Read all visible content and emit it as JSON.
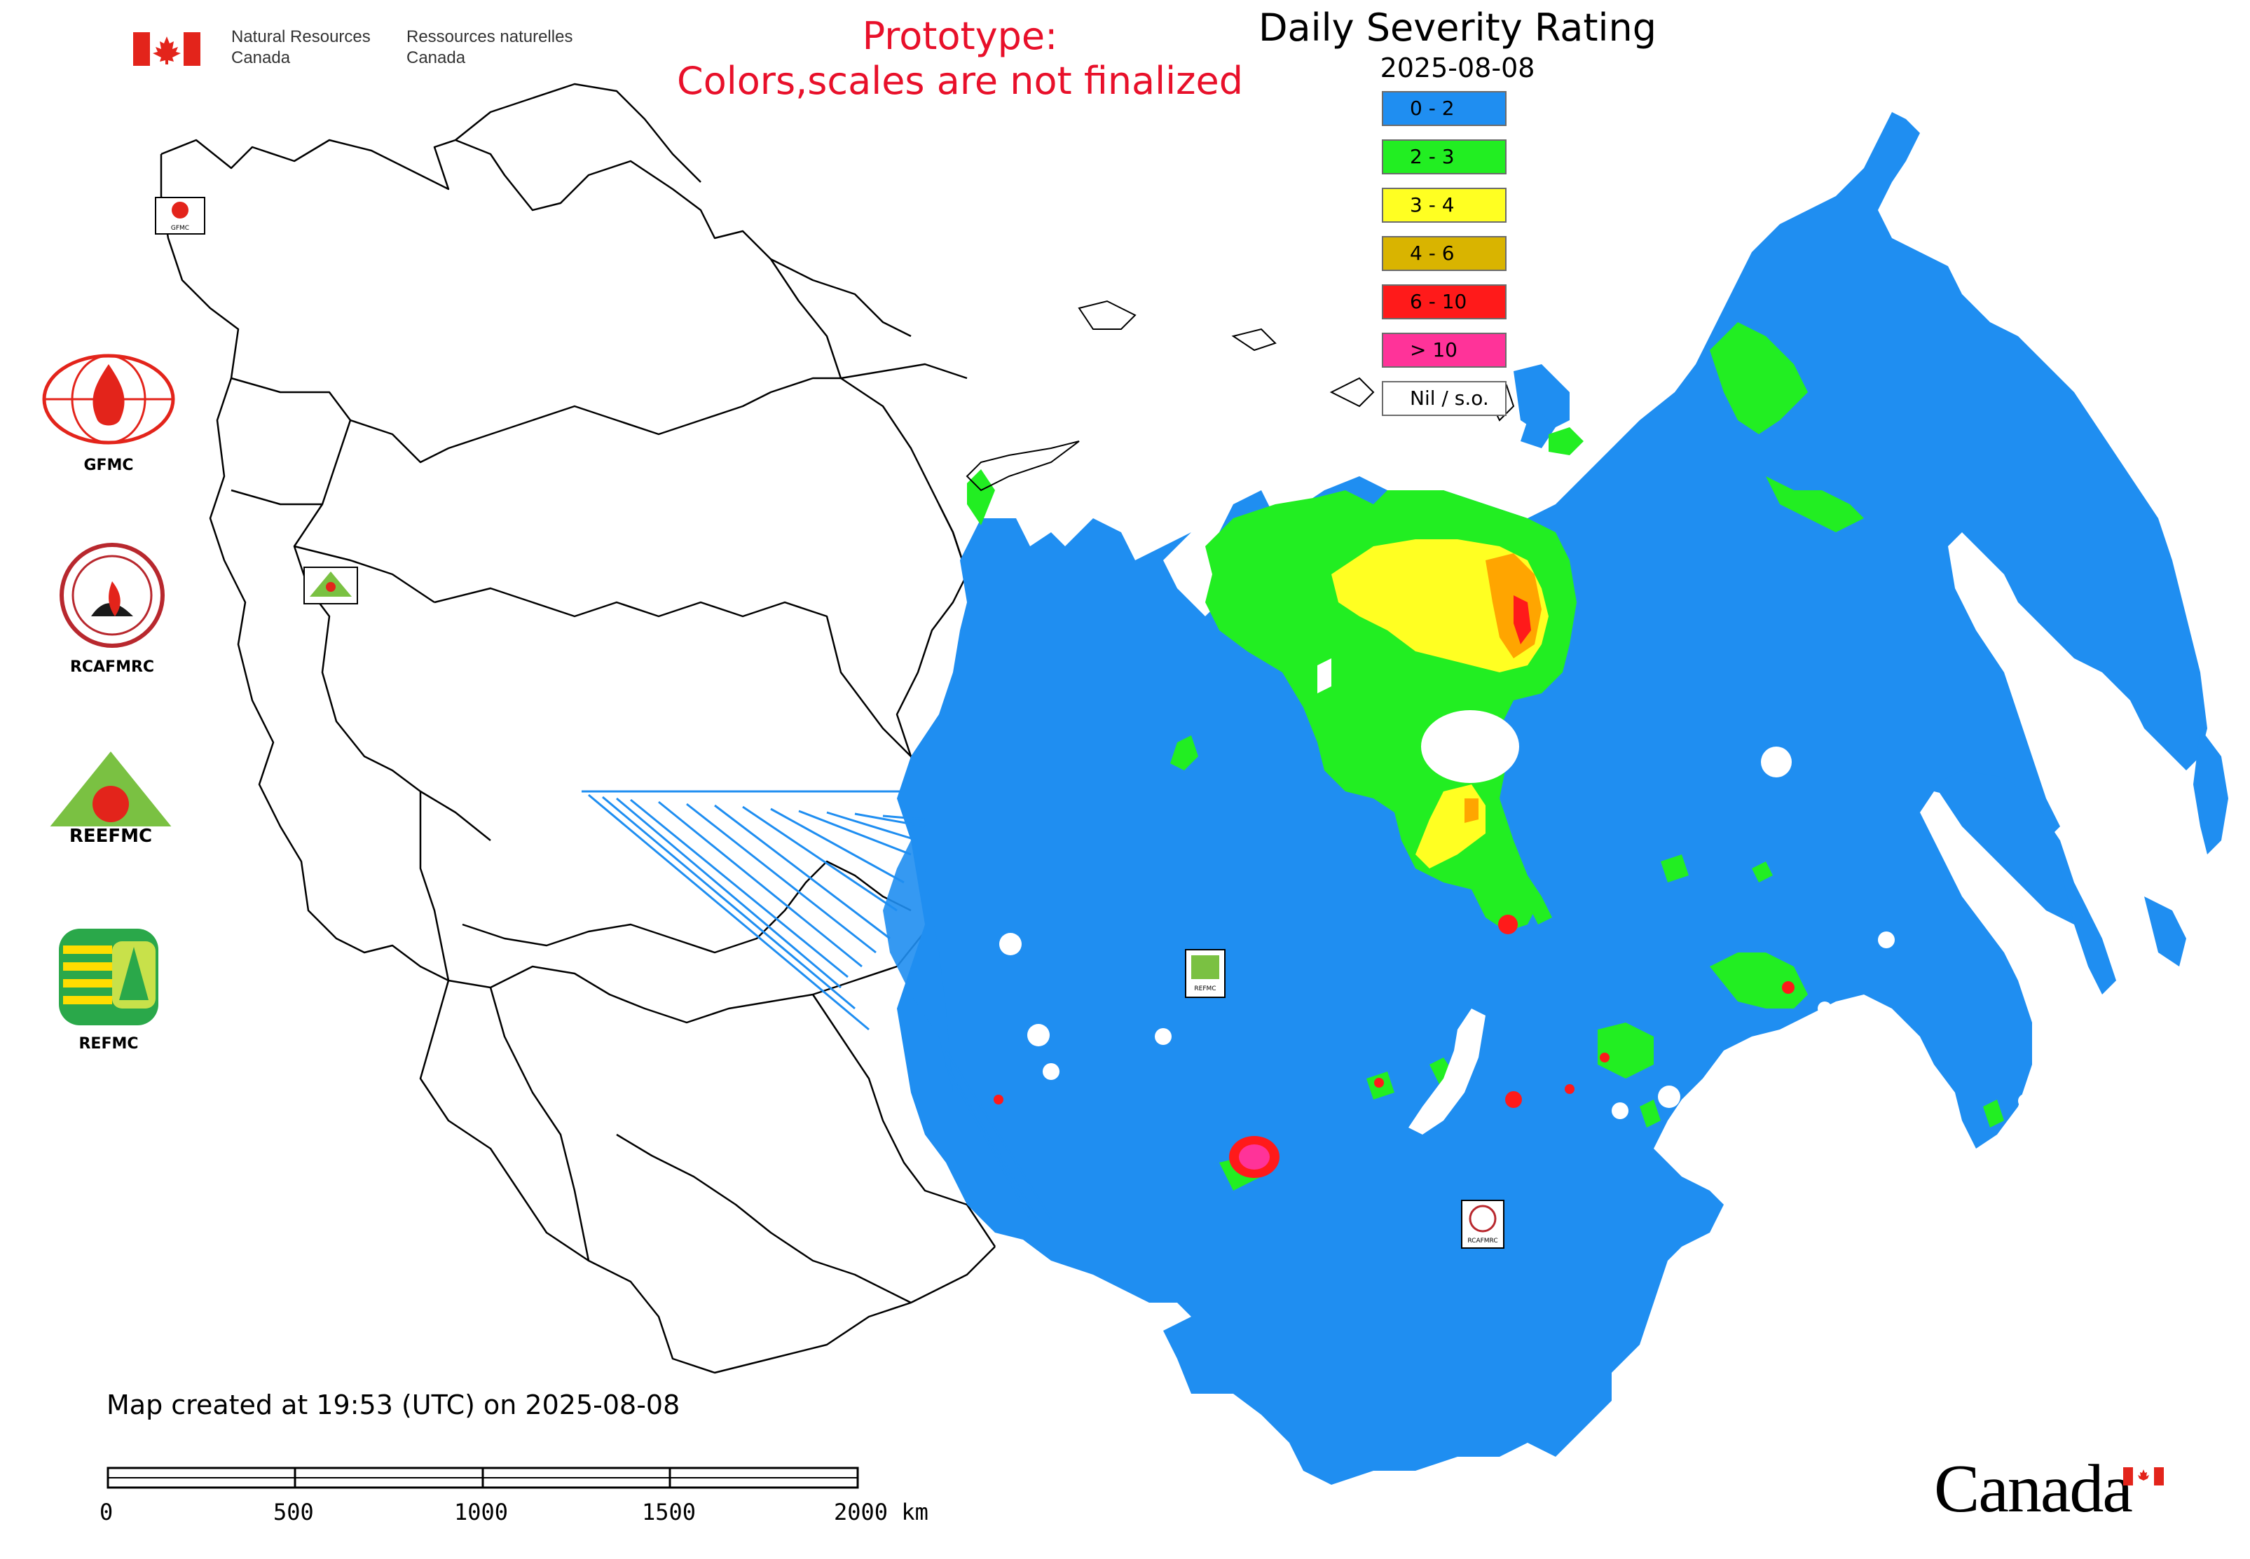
{
  "header": {
    "gov_en_line1": "Natural Resources",
    "gov_en_line2": "Canada",
    "gov_fr_line1": "Ressources naturelles",
    "gov_fr_line2": "Canada",
    "warning_line1": "Prototype:",
    "warning_line2": "Colors,scales are not finalized"
  },
  "legend": {
    "title": "Daily Severity Rating",
    "date": "2025-08-08",
    "classes": [
      {
        "label": "0 - 2",
        "color": "#1f8ef1"
      },
      {
        "label": "2 - 3",
        "color": "#22ee22"
      },
      {
        "label": "3 - 4",
        "color": "#ffff22"
      },
      {
        "label": "4 - 6",
        "color": "#d9b400"
      },
      {
        "label": "6 - 10",
        "color": "#ff1a1a"
      },
      {
        "label": "> 10",
        "color": "#ff3399"
      },
      {
        "label": "Nil / s.o.",
        "color": "#ffffff"
      }
    ]
  },
  "agencies": [
    {
      "name": "GFMC"
    },
    {
      "name": "RCAFMRC"
    },
    {
      "name": "REEFMC"
    },
    {
      "name": "REFMC"
    }
  ],
  "map_labels": {
    "small_gfmc": "GFMC",
    "small_reefmc": "REEFMC",
    "small_refmc": "REFMC",
    "small_rcafmrc": "RCAFMRC"
  },
  "footer": {
    "created": "Map created at 19:53 (UTC) on 2025-08-08",
    "scale_ticks": [
      "0",
      "500",
      "1000",
      "1500",
      "2000 km"
    ],
    "wordmark": "Canada"
  },
  "colors": {
    "nil": "#ffffff",
    "boundary": "#000000",
    "warning": "#e8102a"
  },
  "icons": [
    "canada-flag-icon",
    "gfmc-logo-icon",
    "rcafmrc-logo-icon",
    "reefmc-logo-icon",
    "refmc-logo-icon"
  ]
}
